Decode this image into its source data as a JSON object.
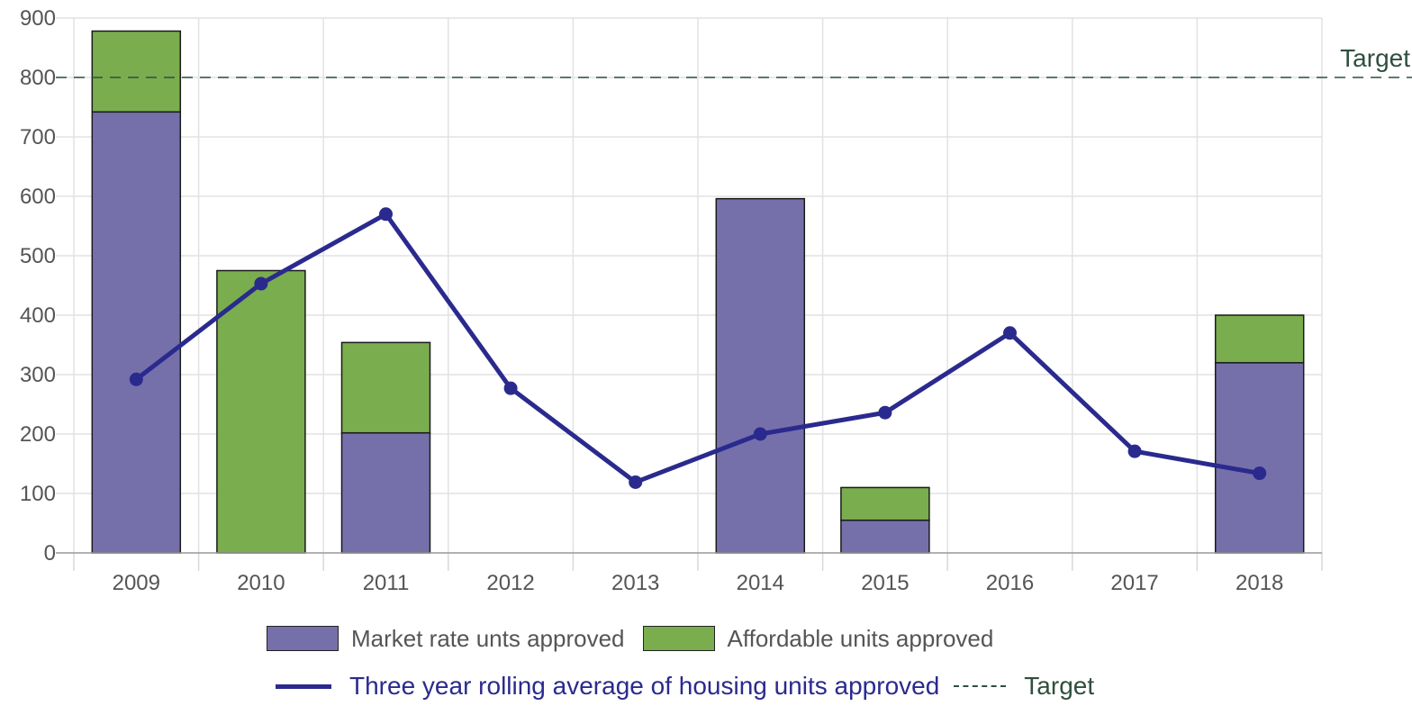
{
  "chart_data": {
    "type": "bar",
    "stacked": true,
    "categories": [
      "2009",
      "2010",
      "2011",
      "2012",
      "2013",
      "2014",
      "2015",
      "2016",
      "2017",
      "2018"
    ],
    "series": [
      {
        "name": "Market rate unts approved",
        "type": "bar",
        "color": "#7570aa",
        "values": [
          742,
          0,
          202,
          0,
          0,
          596,
          55,
          0,
          0,
          320
        ]
      },
      {
        "name": "Affordable units approved",
        "type": "bar",
        "color": "#7aad4e",
        "values": [
          136,
          475,
          152,
          0,
          0,
          0,
          55,
          0,
          0,
          80
        ]
      },
      {
        "name": "Three year rolling average of housing units approved",
        "type": "line",
        "color": "#2a2a8e",
        "values": [
          292,
          453,
          570,
          277,
          119,
          200,
          236,
          370,
          171,
          134
        ]
      }
    ],
    "target": {
      "label": "Target",
      "value": 800,
      "color": "#2f4f3f"
    },
    "y_ticks": [
      0,
      100,
      200,
      300,
      400,
      500,
      600,
      700,
      800,
      900
    ],
    "ylim": [
      0,
      900
    ],
    "grid": true,
    "legend_position": "bottom"
  }
}
